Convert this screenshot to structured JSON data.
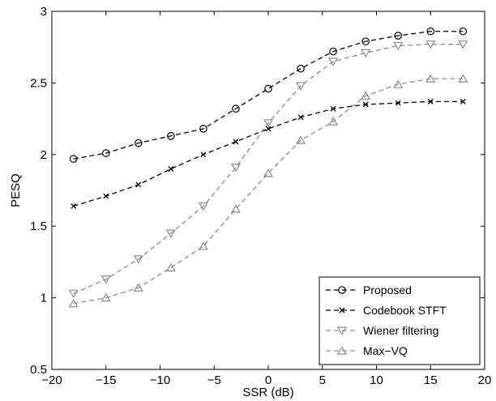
{
  "chart_data": {
    "type": "line",
    "xlabel": "SSR (dB)",
    "ylabel": "PESQ",
    "xlim": [
      -20,
      20
    ],
    "ylim": [
      0.5,
      3
    ],
    "xticks": [
      "−20",
      "−15",
      "−10",
      "−5",
      "0",
      "5",
      "10",
      "15",
      "20"
    ],
    "yticks": [
      "0.5",
      "1",
      "1.5",
      "2",
      "2.5",
      "3"
    ],
    "grid": false,
    "legend_position": "bottom-right",
    "x": [
      -18,
      -15,
      -12,
      -9,
      -6,
      -3,
      0,
      3,
      6,
      9,
      12,
      15,
      18
    ],
    "series": [
      {
        "name": "Proposed",
        "marker": "circle",
        "color": "#000000",
        "values": [
          1.97,
          2.01,
          2.08,
          2.13,
          2.18,
          2.32,
          2.46,
          2.6,
          2.72,
          2.79,
          2.83,
          2.86,
          2.86
        ]
      },
      {
        "name": "Codebook STFT",
        "marker": "x",
        "color": "#000000",
        "values": [
          1.64,
          1.71,
          1.79,
          1.9,
          2.0,
          2.09,
          2.18,
          2.26,
          2.32,
          2.35,
          2.36,
          2.37,
          2.37
        ]
      },
      {
        "name": "Wiener filtering",
        "marker": "triangle-down",
        "color": "#8c8c8c",
        "values": [
          1.03,
          1.13,
          1.27,
          1.45,
          1.64,
          1.91,
          2.22,
          2.48,
          2.65,
          2.71,
          2.76,
          2.77,
          2.77
        ]
      },
      {
        "name": "Max−VQ",
        "marker": "triangle-up",
        "color": "#8c8c8c",
        "values": [
          0.96,
          1.0,
          1.07,
          1.21,
          1.36,
          1.62,
          1.87,
          2.1,
          2.23,
          2.41,
          2.49,
          2.53,
          2.53
        ]
      }
    ]
  }
}
